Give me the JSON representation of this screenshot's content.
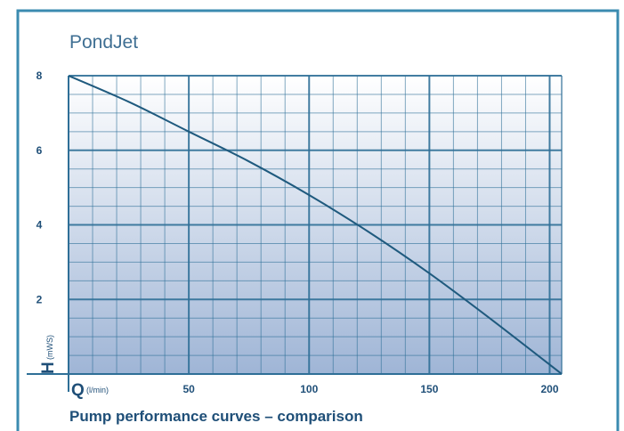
{
  "chart_data": {
    "type": "line",
    "title": "PondJet",
    "caption": "Pump performance curves – comparison",
    "xlabel": {
      "symbol": "Q",
      "unit": "(l/min)"
    },
    "ylabel": {
      "symbol": "H",
      "unit": "(mWS)"
    },
    "xlim": [
      0,
      205
    ],
    "ylim": [
      0,
      8
    ],
    "x_ticks": [
      50,
      100,
      150,
      200
    ],
    "y_ticks": [
      2,
      4,
      6,
      8
    ],
    "grid": true,
    "series": [
      {
        "x": [
          0,
          25,
          50,
          75,
          100,
          125,
          150,
          175,
          205
        ],
        "y": [
          8,
          7.3,
          6.5,
          5.7,
          4.8,
          3.8,
          2.7,
          1.5,
          0
        ]
      }
    ]
  },
  "colors": {
    "frame": "#3b8bb0",
    "grid": "#2f6f97",
    "curve": "#1f5a7e",
    "text": "#1f4f78",
    "title": "#3f6f93",
    "fill_top": "#ffffff",
    "fill_bottom": "#9fb5d6"
  }
}
